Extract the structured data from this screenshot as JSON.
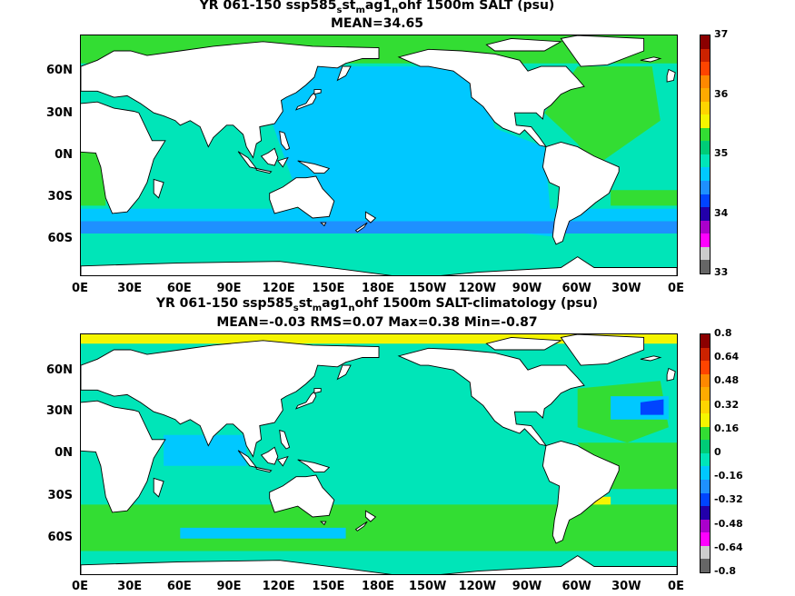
{
  "panel1": {
    "title_prefix": "YR 061-150 ssp585",
    "sub1": "s",
    "mid1": "st",
    "sub2": "m",
    "mid2": "ag1",
    "sub3": "n",
    "title_suffix": "ohf 1500m SALT (psu)",
    "stats": "MEAN=34.65",
    "colorbar": {
      "labels": [
        "37",
        "36",
        "35",
        "34",
        "33"
      ],
      "colors": [
        "#8b0000",
        "#cc2200",
        "#ff4400",
        "#ff8800",
        "#ffaa00",
        "#ffd400",
        "#f5f500",
        "#33dd33",
        "#00cc77",
        "#00e5b8",
        "#00c8ff",
        "#1e90ff",
        "#0044ff",
        "#2200aa",
        "#aa00cc",
        "#ff00ff",
        "#cccccc",
        "#666666"
      ]
    }
  },
  "panel2": {
    "title_prefix": "YR 061-150 ssp585",
    "sub1": "s",
    "mid1": "st",
    "sub2": "m",
    "mid2": "ag1",
    "sub3": "n",
    "title_suffix": "ohf 1500m SALT-climatology (psu)",
    "stats": "MEAN=-0.03   RMS=0.07   Max=0.38   Min=-0.87",
    "colorbar": {
      "labels": [
        "0.8",
        "0.64",
        "0.48",
        "0.32",
        "0.16",
        "0",
        "-0.16",
        "-0.32",
        "-0.48",
        "-0.64",
        "-0.8"
      ],
      "colors": [
        "#8b0000",
        "#cc2200",
        "#ff4400",
        "#ff8800",
        "#ffaa00",
        "#ffd400",
        "#f5f500",
        "#33dd33",
        "#00cc77",
        "#00e5b8",
        "#00c8ff",
        "#1e90ff",
        "#0044ff",
        "#2200aa",
        "#aa00cc",
        "#ff00ff",
        "#cccccc",
        "#666666"
      ]
    }
  },
  "axes": {
    "lat_labels": [
      "60N",
      "30N",
      "0N",
      "30S",
      "60S"
    ],
    "lon_labels": [
      "0E",
      "30E",
      "60E",
      "90E",
      "120E",
      "150E",
      "180E",
      "150W",
      "120W",
      "90W",
      "60W",
      "30W",
      "0E"
    ]
  },
  "colors": {
    "ocean_base": "#00e5b8",
    "pacific_fresh": "#00c8ff",
    "fresh_band": "#1e90ff",
    "atlantic_salty": "#33dd33",
    "arctic_salty": "#33dd33",
    "land": "#ffffff",
    "anomaly_base": "#00e5b8",
    "anomaly_pos": "#33dd33",
    "anomaly_yellow": "#f5f500",
    "anomaly_neg": "#00c8ff",
    "anomaly_strong_neg": "#0044ff"
  }
}
